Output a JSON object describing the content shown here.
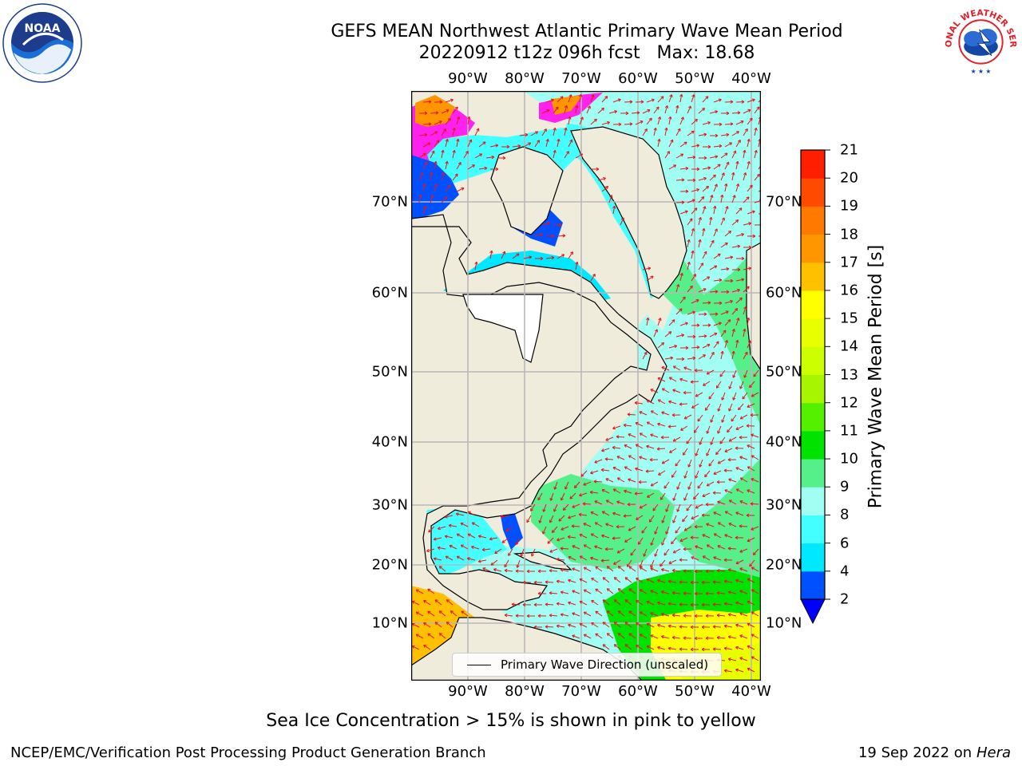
{
  "title": {
    "line1": "GEFS MEAN Northwest Atlantic Primary Wave Mean Period",
    "line2": "20220912 t12z 096h fcst   Max: 18.68"
  },
  "map": {
    "lon_ticks": [
      "90°W",
      "80°W",
      "70°W",
      "60°W",
      "50°W",
      "40°W"
    ],
    "lat_ticks": [
      "70°N",
      "60°N",
      "50°N",
      "40°N",
      "30°N",
      "20°N",
      "10°N"
    ],
    "legend_label": "Primary Wave Direction (unscaled)",
    "colors": {
      "land": "#f0ecdc",
      "grid": "#b8b8b8",
      "arrow": "#e8141a",
      "coast": "#000000",
      "sea_ice": "#ff22ee"
    }
  },
  "colorbar": {
    "label": "Primary Wave Mean Period [s]",
    "ticks": [
      "2",
      "4",
      "6",
      "8",
      "9",
      "10",
      "11",
      "12",
      "13",
      "14",
      "15",
      "16",
      "17",
      "18",
      "19",
      "20",
      "21"
    ],
    "colors": [
      "#0050ff",
      "#00e8ff",
      "#44ffff",
      "#a0fff2",
      "#55f08a",
      "#00e200",
      "#55f000",
      "#a8f500",
      "#ccff00",
      "#e8ff00",
      "#ffff00",
      "#ffc000",
      "#ff9600",
      "#ff7800",
      "#ff4a00",
      "#ff1e00"
    ],
    "under_color": "#0000ff"
  },
  "notes": {
    "sea_ice": "Sea Ice Concentration > 15% is shown in pink to yellow"
  },
  "footer": {
    "left": "NCEP/EMC/Verification Post Processing Product Generation Branch",
    "date": "19 Sep 2022 on",
    "machine": "Hera"
  },
  "logos": {
    "noaa_text": "NOAA",
    "nws_text": "NATIONAL WEATHER SERVICE",
    "noaa_icon": "noaa-logo-icon",
    "nws_icon": "nws-logo-icon"
  }
}
